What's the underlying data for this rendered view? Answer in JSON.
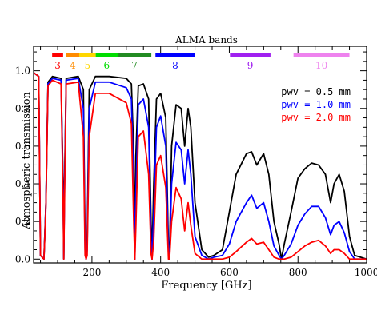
{
  "chart_data": {
    "type": "line",
    "xlabel": "Frequency [GHz]",
    "ylabel": "Atmospheric transmission",
    "xlim": [
      30,
      1000
    ],
    "ylim": [
      -0.02,
      1.13
    ],
    "x_ticks": [
      "200",
      "400",
      "600",
      "800",
      "1000"
    ],
    "y_ticks": [
      "0.0",
      "0.2",
      "0.4",
      "0.6",
      "0.8",
      "1.0"
    ],
    "x_tick_values": [
      200,
      400,
      600,
      800,
      1000
    ],
    "y_tick_values": [
      0.0,
      0.2,
      0.4,
      0.6,
      0.8,
      1.0
    ],
    "bands_title": "ALMA bands",
    "bands": [
      {
        "label": "3",
        "start": 84,
        "end": 116,
        "color": "#ff0000"
      },
      {
        "label": "4",
        "start": 125,
        "end": 163,
        "color": "#ff8c00"
      },
      {
        "label": "5",
        "start": 163,
        "end": 211,
        "color": "#ffd700"
      },
      {
        "label": "6",
        "start": 211,
        "end": 275,
        "color": "#00dd00"
      },
      {
        "label": "7",
        "start": 275,
        "end": 373,
        "color": "#228b22"
      },
      {
        "label": "8",
        "start": 385,
        "end": 500,
        "color": "#0000ff"
      },
      {
        "label": "9",
        "start": 602,
        "end": 720,
        "color": "#a020f0"
      },
      {
        "label": "10",
        "start": 787,
        "end": 950,
        "color": "#ee82ee"
      }
    ],
    "legend_position": "top-right",
    "series": [
      {
        "name": "pwv = 0.5 mm",
        "color": "#000000",
        "points": [
          [
            30,
            0.99
          ],
          [
            45,
            0.97
          ],
          [
            50,
            0.02
          ],
          [
            60,
            0.0
          ],
          [
            66,
            0.3
          ],
          [
            72,
            0.94
          ],
          [
            85,
            0.97
          ],
          [
            110,
            0.96
          ],
          [
            116,
            0.4
          ],
          [
            118,
            0.0
          ],
          [
            120,
            0.4
          ],
          [
            125,
            0.96
          ],
          [
            160,
            0.97
          ],
          [
            175,
            0.9
          ],
          [
            180,
            0.1
          ],
          [
            183,
            0.0
          ],
          [
            186,
            0.1
          ],
          [
            192,
            0.9
          ],
          [
            210,
            0.97
          ],
          [
            250,
            0.97
          ],
          [
            300,
            0.96
          ],
          [
            315,
            0.93
          ],
          [
            322,
            0.55
          ],
          [
            325,
            0.02
          ],
          [
            328,
            0.55
          ],
          [
            335,
            0.92
          ],
          [
            350,
            0.93
          ],
          [
            365,
            0.85
          ],
          [
            372,
            0.2
          ],
          [
            375,
            0.02
          ],
          [
            380,
            0.4
          ],
          [
            388,
            0.85
          ],
          [
            400,
            0.88
          ],
          [
            415,
            0.75
          ],
          [
            423,
            0.05
          ],
          [
            426,
            0.02
          ],
          [
            432,
            0.6
          ],
          [
            445,
            0.82
          ],
          [
            460,
            0.8
          ],
          [
            470,
            0.6
          ],
          [
            480,
            0.8
          ],
          [
            488,
            0.7
          ],
          [
            500,
            0.3
          ],
          [
            520,
            0.05
          ],
          [
            540,
            0.01
          ],
          [
            555,
            0.02
          ],
          [
            580,
            0.05
          ],
          [
            600,
            0.25
          ],
          [
            620,
            0.45
          ],
          [
            650,
            0.56
          ],
          [
            665,
            0.57
          ],
          [
            680,
            0.5
          ],
          [
            700,
            0.56
          ],
          [
            715,
            0.45
          ],
          [
            730,
            0.2
          ],
          [
            745,
            0.08
          ],
          [
            752,
            0.0
          ],
          [
            760,
            0.08
          ],
          [
            780,
            0.25
          ],
          [
            800,
            0.43
          ],
          [
            820,
            0.48
          ],
          [
            840,
            0.51
          ],
          [
            860,
            0.5
          ],
          [
            880,
            0.45
          ],
          [
            895,
            0.3
          ],
          [
            905,
            0.4
          ],
          [
            920,
            0.45
          ],
          [
            935,
            0.36
          ],
          [
            950,
            0.12
          ],
          [
            965,
            0.02
          ],
          [
            1000,
            0.0
          ]
        ]
      },
      {
        "name": "pwv = 1.0 mm",
        "color": "#0000ff",
        "points": [
          [
            30,
            0.99
          ],
          [
            45,
            0.97
          ],
          [
            50,
            0.02
          ],
          [
            60,
            0.0
          ],
          [
            66,
            0.3
          ],
          [
            72,
            0.93
          ],
          [
            85,
            0.96
          ],
          [
            110,
            0.95
          ],
          [
            116,
            0.35
          ],
          [
            118,
            0.0
          ],
          [
            120,
            0.35
          ],
          [
            125,
            0.95
          ],
          [
            160,
            0.96
          ],
          [
            175,
            0.8
          ],
          [
            180,
            0.05
          ],
          [
            183,
            0.0
          ],
          [
            186,
            0.05
          ],
          [
            192,
            0.8
          ],
          [
            210,
            0.94
          ],
          [
            250,
            0.94
          ],
          [
            300,
            0.91
          ],
          [
            315,
            0.85
          ],
          [
            322,
            0.35
          ],
          [
            325,
            0.0
          ],
          [
            328,
            0.35
          ],
          [
            335,
            0.82
          ],
          [
            350,
            0.85
          ],
          [
            365,
            0.7
          ],
          [
            372,
            0.1
          ],
          [
            375,
            0.0
          ],
          [
            380,
            0.25
          ],
          [
            388,
            0.7
          ],
          [
            400,
            0.76
          ],
          [
            415,
            0.6
          ],
          [
            423,
            0.02
          ],
          [
            426,
            0.0
          ],
          [
            432,
            0.4
          ],
          [
            445,
            0.62
          ],
          [
            460,
            0.58
          ],
          [
            470,
            0.4
          ],
          [
            480,
            0.58
          ],
          [
            488,
            0.45
          ],
          [
            500,
            0.12
          ],
          [
            520,
            0.02
          ],
          [
            540,
            0.0
          ],
          [
            555,
            0.01
          ],
          [
            580,
            0.02
          ],
          [
            600,
            0.08
          ],
          [
            620,
            0.2
          ],
          [
            650,
            0.3
          ],
          [
            665,
            0.34
          ],
          [
            680,
            0.27
          ],
          [
            700,
            0.3
          ],
          [
            715,
            0.2
          ],
          [
            730,
            0.07
          ],
          [
            745,
            0.02
          ],
          [
            752,
            0.0
          ],
          [
            760,
            0.02
          ],
          [
            780,
            0.08
          ],
          [
            800,
            0.18
          ],
          [
            820,
            0.24
          ],
          [
            840,
            0.28
          ],
          [
            860,
            0.28
          ],
          [
            880,
            0.22
          ],
          [
            895,
            0.13
          ],
          [
            905,
            0.18
          ],
          [
            920,
            0.2
          ],
          [
            935,
            0.14
          ],
          [
            950,
            0.04
          ],
          [
            965,
            0.0
          ],
          [
            1000,
            0.0
          ]
        ]
      },
      {
        "name": "pwv = 2.0 mm",
        "color": "#ff0000",
        "points": [
          [
            30,
            0.99
          ],
          [
            45,
            0.97
          ],
          [
            50,
            0.02
          ],
          [
            60,
            0.0
          ],
          [
            66,
            0.28
          ],
          [
            72,
            0.92
          ],
          [
            85,
            0.95
          ],
          [
            110,
            0.93
          ],
          [
            116,
            0.3
          ],
          [
            118,
            0.0
          ],
          [
            120,
            0.3
          ],
          [
            125,
            0.93
          ],
          [
            160,
            0.94
          ],
          [
            175,
            0.65
          ],
          [
            180,
            0.02
          ],
          [
            183,
            0.0
          ],
          [
            186,
            0.02
          ],
          [
            192,
            0.65
          ],
          [
            210,
            0.88
          ],
          [
            250,
            0.88
          ],
          [
            300,
            0.83
          ],
          [
            315,
            0.72
          ],
          [
            322,
            0.18
          ],
          [
            325,
            0.0
          ],
          [
            328,
            0.18
          ],
          [
            335,
            0.65
          ],
          [
            350,
            0.68
          ],
          [
            365,
            0.45
          ],
          [
            372,
            0.03
          ],
          [
            375,
            0.0
          ],
          [
            380,
            0.1
          ],
          [
            388,
            0.5
          ],
          [
            400,
            0.55
          ],
          [
            415,
            0.38
          ],
          [
            423,
            0.0
          ],
          [
            426,
            0.0
          ],
          [
            432,
            0.2
          ],
          [
            445,
            0.38
          ],
          [
            460,
            0.32
          ],
          [
            470,
            0.15
          ],
          [
            480,
            0.3
          ],
          [
            488,
            0.18
          ],
          [
            500,
            0.03
          ],
          [
            520,
            0.0
          ],
          [
            540,
            0.0
          ],
          [
            580,
            0.0
          ],
          [
            600,
            0.01
          ],
          [
            620,
            0.04
          ],
          [
            650,
            0.09
          ],
          [
            665,
            0.11
          ],
          [
            680,
            0.08
          ],
          [
            700,
            0.09
          ],
          [
            715,
            0.05
          ],
          [
            730,
            0.01
          ],
          [
            745,
            0.0
          ],
          [
            760,
            0.0
          ],
          [
            780,
            0.01
          ],
          [
            800,
            0.04
          ],
          [
            820,
            0.07
          ],
          [
            840,
            0.09
          ],
          [
            860,
            0.1
          ],
          [
            880,
            0.07
          ],
          [
            895,
            0.03
          ],
          [
            905,
            0.05
          ],
          [
            920,
            0.05
          ],
          [
            935,
            0.03
          ],
          [
            950,
            0.0
          ],
          [
            1000,
            0.0
          ]
        ]
      }
    ]
  }
}
